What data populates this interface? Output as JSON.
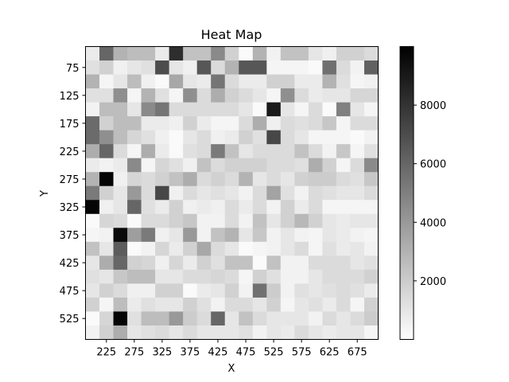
{
  "chart_data": {
    "type": "heatmap",
    "title": "Heat Map",
    "xlabel": "X",
    "ylabel": "Y",
    "colormap": "Greys",
    "color_low": "#ffffff",
    "color_high": "#000000",
    "vmin": 0,
    "vmax": 10000,
    "x": [
      200,
      225,
      250,
      275,
      300,
      325,
      350,
      375,
      400,
      425,
      450,
      475,
      500,
      525,
      550,
      575,
      600,
      625,
      650,
      675,
      700
    ],
    "y": [
      50,
      75,
      100,
      125,
      150,
      175,
      200,
      225,
      250,
      275,
      300,
      325,
      350,
      375,
      400,
      425,
      450,
      475,
      500,
      525,
      550
    ],
    "x_ticks": [
      225,
      275,
      325,
      375,
      425,
      475,
      525,
      575,
      625,
      675
    ],
    "y_ticks": [
      75,
      125,
      175,
      225,
      275,
      325,
      375,
      425,
      475,
      525
    ],
    "colorbar_ticks": [
      2000,
      4000,
      6000,
      8000
    ],
    "values": [
      [
        800,
        6000,
        3000,
        2600,
        2600,
        800,
        8200,
        2400,
        2400,
        4600,
        1800,
        200,
        3000,
        500,
        2400,
        2400,
        1000,
        600,
        1800,
        1800,
        1400
      ],
      [
        1200,
        1800,
        600,
        1000,
        1200,
        7000,
        1000,
        600,
        6600,
        1400,
        3000,
        6600,
        6600,
        400,
        400,
        400,
        200,
        5600,
        1400,
        500,
        6200
      ],
      [
        3000,
        400,
        1000,
        2600,
        600,
        200,
        3400,
        1000,
        800,
        5400,
        1400,
        800,
        800,
        1800,
        1800,
        800,
        800,
        3000,
        1200,
        400,
        500
      ],
      [
        1200,
        1200,
        4400,
        400,
        3000,
        1200,
        400,
        4400,
        1400,
        3200,
        1800,
        1400,
        1000,
        400,
        4400,
        1400,
        800,
        1000,
        1000,
        1600,
        1600
      ],
      [
        500,
        2600,
        2600,
        1000,
        4600,
        5400,
        1400,
        1400,
        1400,
        1400,
        1400,
        1000,
        200,
        9000,
        1000,
        400,
        1400,
        200,
        5000,
        1000,
        400
      ],
      [
        5800,
        1800,
        2600,
        2600,
        800,
        800,
        600,
        1800,
        800,
        400,
        400,
        1400,
        3200,
        600,
        1400,
        1200,
        1400,
        2200,
        400,
        1400,
        1400
      ],
      [
        5800,
        4400,
        2600,
        1600,
        1200,
        600,
        200,
        1000,
        1400,
        600,
        800,
        1800,
        1200,
        7200,
        1400,
        1000,
        400,
        400,
        400,
        200,
        500
      ],
      [
        3200,
        6000,
        1400,
        400,
        3200,
        800,
        200,
        1200,
        1400,
        5200,
        2400,
        1000,
        1400,
        1400,
        1400,
        2400,
        1400,
        500,
        2200,
        400,
        1200
      ],
      [
        800,
        500,
        800,
        4600,
        400,
        1600,
        1200,
        600,
        2400,
        1400,
        1800,
        1800,
        1800,
        1400,
        1400,
        1200,
        3200,
        1800,
        400,
        1400,
        4600
      ],
      [
        3000,
        9800,
        600,
        1600,
        1400,
        1800,
        2400,
        3200,
        1400,
        1800,
        1400,
        3000,
        1000,
        1400,
        1000,
        1800,
        2000,
        2000,
        1400,
        1200,
        2200
      ],
      [
        5200,
        1800,
        1000,
        4000,
        1400,
        7200,
        600,
        1400,
        1000,
        1200,
        1000,
        500,
        1400,
        3600,
        1200,
        500,
        1400,
        1200,
        1000,
        1000,
        1400
      ],
      [
        9800,
        600,
        1000,
        6000,
        1200,
        800,
        1800,
        600,
        800,
        600,
        1400,
        800,
        1400,
        500,
        1800,
        800,
        1400,
        400,
        400,
        400,
        400
      ],
      [
        200,
        1600,
        1400,
        200,
        1400,
        1400,
        1800,
        2200,
        500,
        500,
        1400,
        500,
        2400,
        1000,
        1800,
        2800,
        1800,
        1000,
        800,
        1000,
        1000
      ],
      [
        400,
        500,
        9600,
        3800,
        5200,
        600,
        1000,
        4000,
        500,
        2400,
        3000,
        1000,
        2200,
        500,
        1000,
        500,
        400,
        1000,
        800,
        500,
        400
      ],
      [
        2400,
        1000,
        6400,
        200,
        500,
        1600,
        800,
        1800,
        3400,
        1400,
        1000,
        200,
        400,
        500,
        1000,
        1400,
        400,
        1200,
        800,
        1000,
        500
      ],
      [
        1000,
        3200,
        6000,
        1800,
        1600,
        600,
        1600,
        800,
        1800,
        1200,
        2400,
        2400,
        200,
        2400,
        500,
        500,
        1400,
        1400,
        1400,
        1000,
        1200
      ],
      [
        1200,
        1000,
        2200,
        2600,
        2600,
        1000,
        1000,
        1400,
        1400,
        1600,
        1400,
        400,
        1800,
        1200,
        500,
        500,
        1000,
        1400,
        1400,
        1400,
        1800
      ],
      [
        1000,
        1800,
        1400,
        600,
        600,
        1800,
        1800,
        200,
        800,
        1000,
        1800,
        500,
        5600,
        2000,
        500,
        1200,
        1000,
        1200,
        1400,
        1200,
        800
      ],
      [
        1800,
        400,
        2600,
        800,
        1200,
        1000,
        1000,
        1800,
        1200,
        500,
        1400,
        1400,
        1000,
        1800,
        400,
        1000,
        1200,
        800,
        1400,
        400,
        1800
      ],
      [
        200,
        1600,
        9800,
        1200,
        2600,
        2600,
        4000,
        2000,
        1400,
        6000,
        1000,
        2400,
        1400,
        1000,
        1000,
        1000,
        500,
        1400,
        1000,
        1400,
        2000
      ],
      [
        500,
        1800,
        3200,
        1000,
        1200,
        1400,
        1000,
        1400,
        1000,
        1000,
        1000,
        1200,
        500,
        1000,
        800,
        1400,
        1000,
        800,
        1000,
        1000,
        400
      ]
    ]
  }
}
